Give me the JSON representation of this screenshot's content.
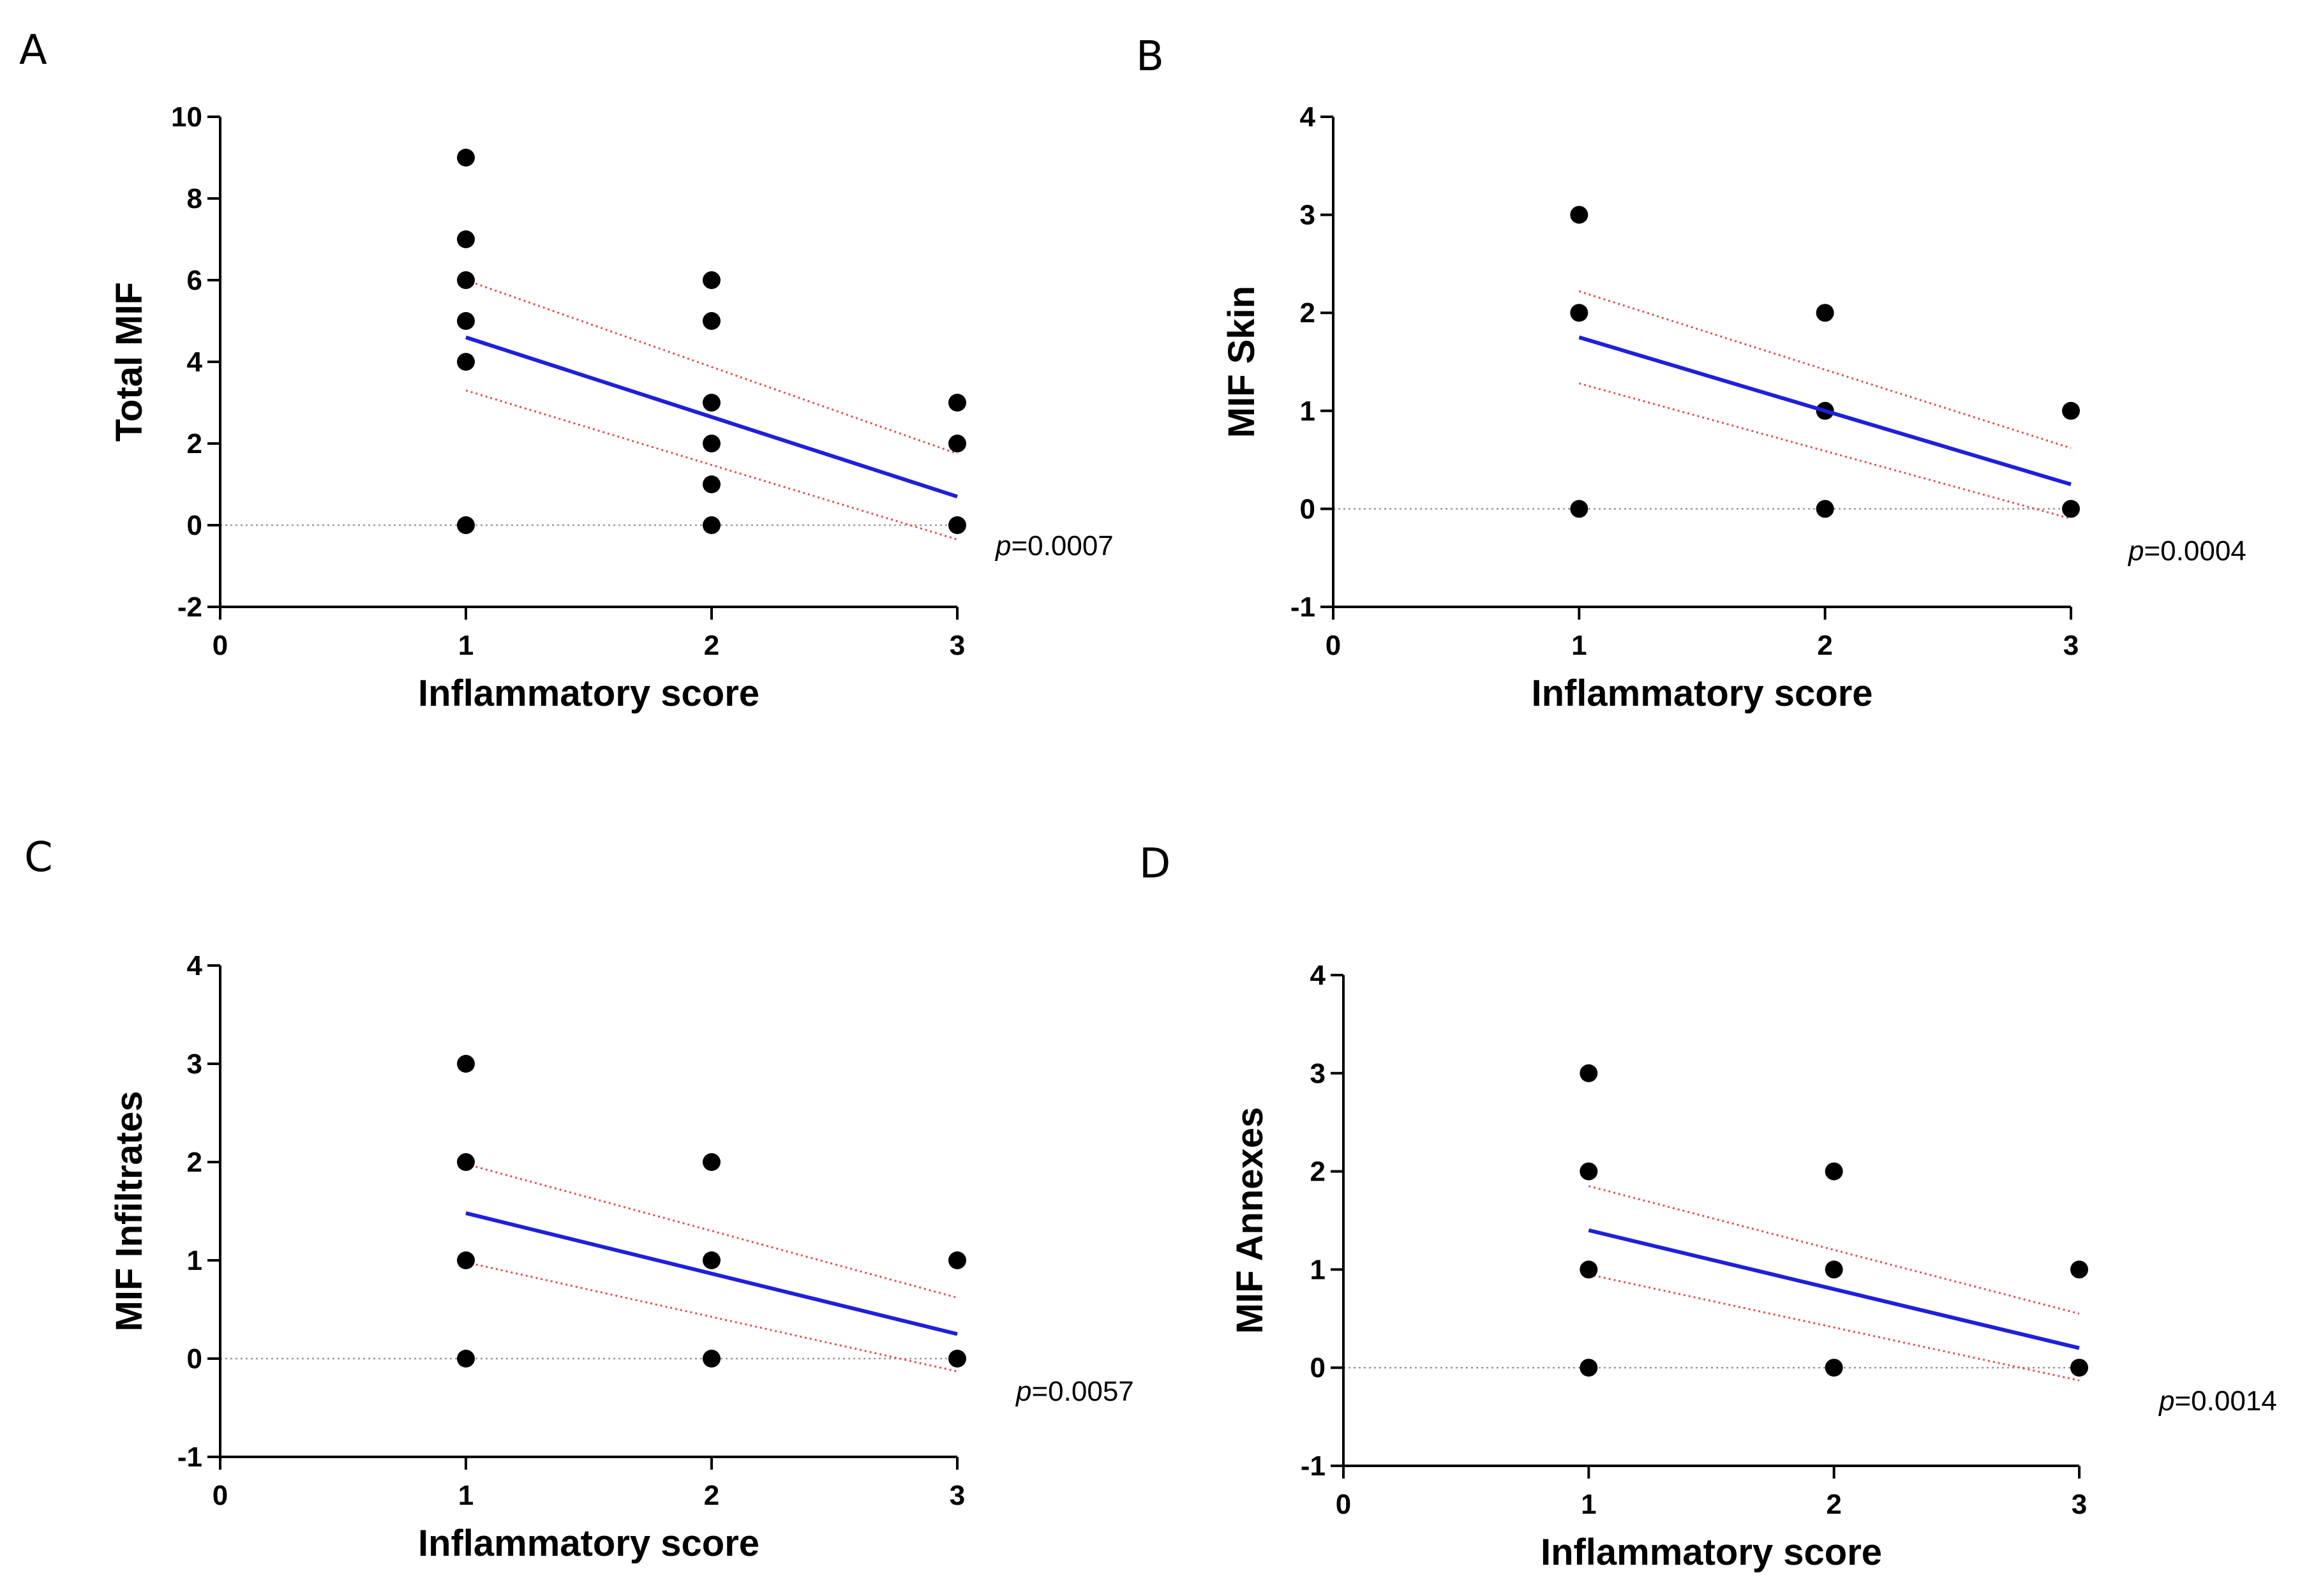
{
  "chart_data": [
    {
      "type": "scatter",
      "panel": "A",
      "xlabel": "Inflammatory score",
      "ylabel": "Total MIF",
      "xlim": [
        0,
        3
      ],
      "ylim": [
        -2,
        10
      ],
      "xticks": [
        "0",
        "1",
        "2",
        "3"
      ],
      "yticks": [
        "-2",
        "0",
        "2",
        "4",
        "6",
        "8",
        "10"
      ],
      "points": [
        [
          1,
          0
        ],
        [
          1,
          4
        ],
        [
          1,
          5
        ],
        [
          1,
          6
        ],
        [
          1,
          7
        ],
        [
          1,
          9
        ],
        [
          2,
          0
        ],
        [
          2,
          1
        ],
        [
          2,
          2
        ],
        [
          2,
          3
        ],
        [
          2,
          5
        ],
        [
          2,
          6
        ],
        [
          3,
          0
        ],
        [
          3,
          2
        ],
        [
          3,
          3
        ]
      ],
      "regression": {
        "x": [
          1,
          3
        ],
        "y": [
          4.6,
          0.7
        ]
      },
      "ci_upper": {
        "x": [
          1,
          3
        ],
        "y": [
          6.0,
          1.75
        ]
      },
      "ci_lower": {
        "x": [
          1,
          3
        ],
        "y": [
          3.3,
          -0.35
        ]
      },
      "p_prefix": "p",
      "p_value": "=0.0007"
    },
    {
      "type": "scatter",
      "panel": "B",
      "xlabel": "Inflammatory score",
      "ylabel": "MIF Skin",
      "xlim": [
        0,
        3
      ],
      "ylim": [
        -1,
        4
      ],
      "xticks": [
        "0",
        "1",
        "2",
        "3"
      ],
      "yticks": [
        "-1",
        "0",
        "1",
        "2",
        "3",
        "4"
      ],
      "points": [
        [
          1,
          0
        ],
        [
          1,
          2
        ],
        [
          1,
          3
        ],
        [
          2,
          0
        ],
        [
          2,
          1
        ],
        [
          2,
          2
        ],
        [
          3,
          0
        ],
        [
          3,
          1
        ]
      ],
      "regression": {
        "x": [
          1,
          3
        ],
        "y": [
          1.75,
          0.25
        ]
      },
      "ci_upper": {
        "x": [
          1,
          3
        ],
        "y": [
          2.22,
          0.62
        ]
      },
      "ci_lower": {
        "x": [
          1,
          3
        ],
        "y": [
          1.28,
          -0.1
        ]
      },
      "p_prefix": "p",
      "p_value": "=0.0004"
    },
    {
      "type": "scatter",
      "panel": "C",
      "xlabel": "Inflammatory score",
      "ylabel": "MIF Infiltrates",
      "xlim": [
        0,
        3
      ],
      "ylim": [
        -1,
        4
      ],
      "xticks": [
        "0",
        "1",
        "2",
        "3"
      ],
      "yticks": [
        "-1",
        "0",
        "1",
        "2",
        "3",
        "4"
      ],
      "points": [
        [
          1,
          0
        ],
        [
          1,
          1
        ],
        [
          1,
          2
        ],
        [
          1,
          3
        ],
        [
          2,
          0
        ],
        [
          2,
          1
        ],
        [
          2,
          2
        ],
        [
          3,
          0
        ],
        [
          3,
          1
        ]
      ],
      "regression": {
        "x": [
          1,
          3
        ],
        "y": [
          1.48,
          0.25
        ]
      },
      "ci_upper": {
        "x": [
          1,
          3
        ],
        "y": [
          1.98,
          0.62
        ]
      },
      "ci_lower": {
        "x": [
          1,
          3
        ],
        "y": [
          0.98,
          -0.13
        ]
      },
      "p_prefix": "p",
      "p_value": "=0.0057"
    },
    {
      "type": "scatter",
      "panel": "D",
      "xlabel": "Inflammatory score",
      "ylabel": "MIF Annexes",
      "xlim": [
        0,
        3
      ],
      "ylim": [
        -1,
        4
      ],
      "xticks": [
        "0",
        "1",
        "2",
        "3"
      ],
      "yticks": [
        "-1",
        "0",
        "1",
        "2",
        "3",
        "4"
      ],
      "points": [
        [
          1,
          0
        ],
        [
          1,
          1
        ],
        [
          1,
          2
        ],
        [
          1,
          3
        ],
        [
          2,
          0
        ],
        [
          2,
          1
        ],
        [
          2,
          2
        ],
        [
          3,
          0
        ],
        [
          3,
          1
        ]
      ],
      "regression": {
        "x": [
          1,
          3
        ],
        "y": [
          1.4,
          0.2
        ]
      },
      "ci_upper": {
        "x": [
          1,
          3
        ],
        "y": [
          1.85,
          0.55
        ]
      },
      "ci_lower": {
        "x": [
          1,
          3
        ],
        "y": [
          0.95,
          -0.13
        ]
      },
      "p_prefix": "p",
      "p_value": "=0.0014"
    }
  ],
  "colors": {
    "regression": "#1f1fdc",
    "ci": "#e05050",
    "zero_line": "#999999",
    "points": "#000000",
    "axis": "#000000"
  }
}
